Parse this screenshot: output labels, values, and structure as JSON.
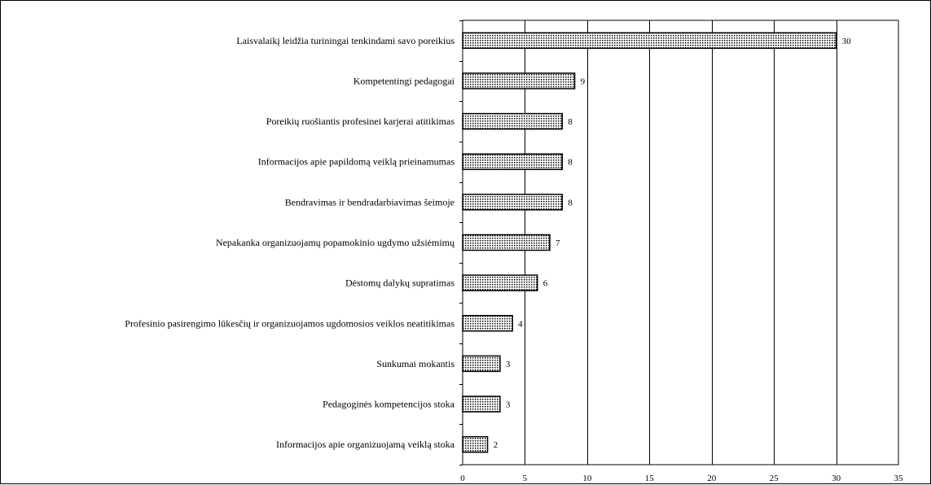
{
  "chart_data": {
    "type": "bar",
    "orientation": "horizontal",
    "categories": [
      "Laisvalaikį leidžia turiningai tenkindami savo poreikius",
      "Kompetentingi pedagogai",
      "Poreikių ruošiantis profesinei karjerai atitikimas",
      "Informacijos apie papildomą veiklą prieinamumas",
      "Bendravimas ir bendradarbiavimas šeimoje",
      "Nepakanka organizuojamų popamokinio ugdymo užsiėmimų",
      "Dėstomų dalykų supratimas",
      "Profesinio pasirengimo lūkesčių ir organizuojamos ugdomosios veiklos neatitikimas",
      "Sunkumai mokantis",
      "Pedagoginės kompetencijos stoka",
      "Informacijos apie organizuojamą veiklą stoka"
    ],
    "values": [
      30,
      9,
      8,
      8,
      8,
      7,
      6,
      4,
      3,
      3,
      2
    ],
    "value_labels": [
      "30",
      "9",
      "8",
      "8",
      "8",
      "7",
      "6",
      "4",
      "3",
      "3",
      "2"
    ],
    "xlim": [
      0,
      35
    ],
    "x_ticks": [
      0,
      5,
      10,
      15,
      20,
      25,
      30,
      35
    ],
    "x_tick_labels": [
      "0",
      "5",
      "10",
      "15",
      "20",
      "25",
      "30",
      "35"
    ],
    "grid": "vertical",
    "legend": "none",
    "bar_fill": "dotted",
    "colors": {
      "bar_dots": "#000000",
      "bar_bg": "#ffffff",
      "grid": "#000000"
    }
  }
}
